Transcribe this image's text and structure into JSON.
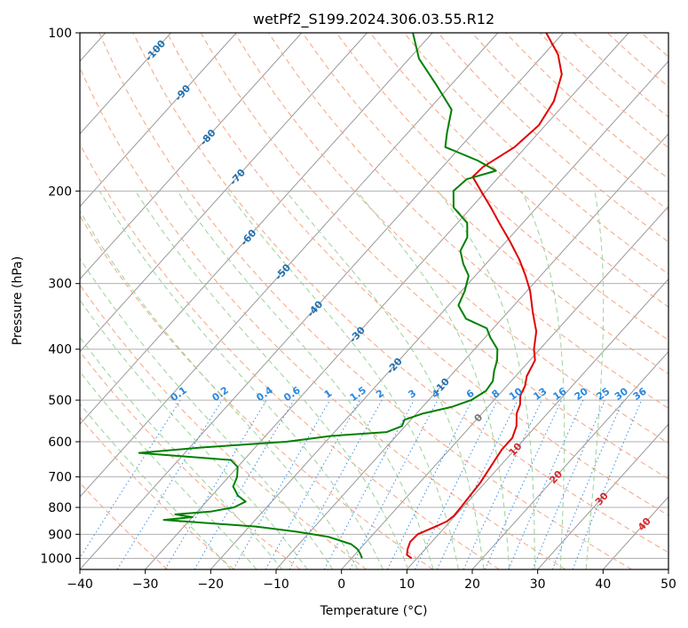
{
  "chart_data": {
    "type": "line",
    "title": "wetPf2_S199.2024.306.03.55.R12",
    "xlabel": "Temperature (°C)",
    "ylabel": "Pressure (hPa)",
    "x_ticks": [
      -40,
      -30,
      -20,
      -10,
      0,
      10,
      20,
      30,
      40,
      50
    ],
    "y_ticks": [
      100,
      200,
      300,
      400,
      500,
      600,
      700,
      800,
      900,
      1000
    ],
    "xlim": [
      -40,
      50
    ],
    "ylim": [
      1050,
      100
    ],
    "y_scale": "log",
    "skew": true,
    "grid": true,
    "colors": {
      "temperature": "#e00000",
      "dewpoint": "#008000",
      "isotherm": "#999999",
      "dry_adiabat": "#f4a582",
      "moist_adiabat": "#99d399",
      "mixing_ratio": "#3b8fe8",
      "mixing_label": "#2a88e0",
      "temp_label": "#1f6fb0",
      "warm_label": "#d62728",
      "zero_label": "#777777"
    },
    "series": [
      {
        "key": "temperature",
        "points": [
          [
            1000,
            9.2
          ],
          [
            985,
            8.0
          ],
          [
            960,
            7.3
          ],
          [
            930,
            6.7
          ],
          [
            900,
            6.8
          ],
          [
            870,
            8.5
          ],
          [
            850,
            9.5
          ],
          [
            830,
            9.8
          ],
          [
            800,
            9.7
          ],
          [
            760,
            9.5
          ],
          [
            720,
            9.3
          ],
          [
            680,
            8.8
          ],
          [
            650,
            8.4
          ],
          [
            620,
            8.0
          ],
          [
            590,
            8.0
          ],
          [
            560,
            7.0
          ],
          [
            530,
            5.3
          ],
          [
            510,
            4.6
          ],
          [
            490,
            3.4
          ],
          [
            470,
            2.8
          ],
          [
            450,
            1.7
          ],
          [
            420,
            0.8
          ],
          [
            400,
            -0.9
          ],
          [
            370,
            -3.0
          ],
          [
            340,
            -6.2
          ],
          [
            310,
            -9.5
          ],
          [
            290,
            -12.3
          ],
          [
            270,
            -15.5
          ],
          [
            250,
            -19.3
          ],
          [
            230,
            -23.6
          ],
          [
            215,
            -27.0
          ],
          [
            200,
            -30.8
          ],
          [
            188,
            -34.0
          ],
          [
            180,
            -33.8
          ],
          [
            165,
            -31.7
          ],
          [
            150,
            -31.0
          ],
          [
            135,
            -32.0
          ],
          [
            120,
            -34.5
          ],
          [
            110,
            -37.8
          ],
          [
            100,
            -42.6
          ]
        ]
      },
      {
        "key": "dewpoint",
        "points": [
          [
            1000,
            1.6
          ],
          [
            980,
            0.7
          ],
          [
            960,
            -0.4
          ],
          [
            940,
            -2.0
          ],
          [
            910,
            -6.5
          ],
          [
            890,
            -12.0
          ],
          [
            870,
            -19.0
          ],
          [
            845,
            -34.0
          ],
          [
            835,
            -30.0
          ],
          [
            825,
            -33.0
          ],
          [
            815,
            -28.0
          ],
          [
            800,
            -25.0
          ],
          [
            780,
            -24.0
          ],
          [
            760,
            -26.0
          ],
          [
            730,
            -28.0
          ],
          [
            700,
            -28.7
          ],
          [
            670,
            -30.0
          ],
          [
            650,
            -32.0
          ],
          [
            630,
            -47.0
          ],
          [
            615,
            -38.0
          ],
          [
            600,
            -26.0
          ],
          [
            585,
            -20.0
          ],
          [
            575,
            -12.0
          ],
          [
            560,
            -10.5
          ],
          [
            545,
            -11.0
          ],
          [
            530,
            -9.0
          ],
          [
            515,
            -5.5
          ],
          [
            500,
            -3.5
          ],
          [
            480,
            -2.5
          ],
          [
            460,
            -2.8
          ],
          [
            440,
            -4.0
          ],
          [
            420,
            -5.0
          ],
          [
            400,
            -6.5
          ],
          [
            380,
            -9.2
          ],
          [
            365,
            -11.0
          ],
          [
            350,
            -15.5
          ],
          [
            330,
            -18.5
          ],
          [
            310,
            -19.5
          ],
          [
            290,
            -21.0
          ],
          [
            275,
            -23.5
          ],
          [
            260,
            -25.7
          ],
          [
            245,
            -26.5
          ],
          [
            230,
            -28.5
          ],
          [
            215,
            -32.7
          ],
          [
            200,
            -35.0
          ],
          [
            190,
            -34.6
          ],
          [
            183,
            -31.3
          ],
          [
            175,
            -35.5
          ],
          [
            165,
            -42.3
          ],
          [
            155,
            -44.0
          ],
          [
            140,
            -46.5
          ],
          [
            125,
            -52.5
          ],
          [
            112,
            -58.5
          ],
          [
            100,
            -63.0
          ]
        ]
      }
    ],
    "isotherm_labels": [
      "-100",
      "-90",
      "-80",
      "-70",
      "-60",
      "-50",
      "-40",
      "-30",
      "-20",
      "-10",
      "0",
      "10",
      "20",
      "30",
      "40"
    ],
    "mixing_ratio_labels": [
      "0.1",
      "0.2",
      "0.4",
      "0.6",
      "1",
      "1.5",
      "2",
      "3",
      "4",
      "6",
      "8",
      "10",
      "13",
      "16",
      "20",
      "25",
      "30",
      "36"
    ]
  }
}
